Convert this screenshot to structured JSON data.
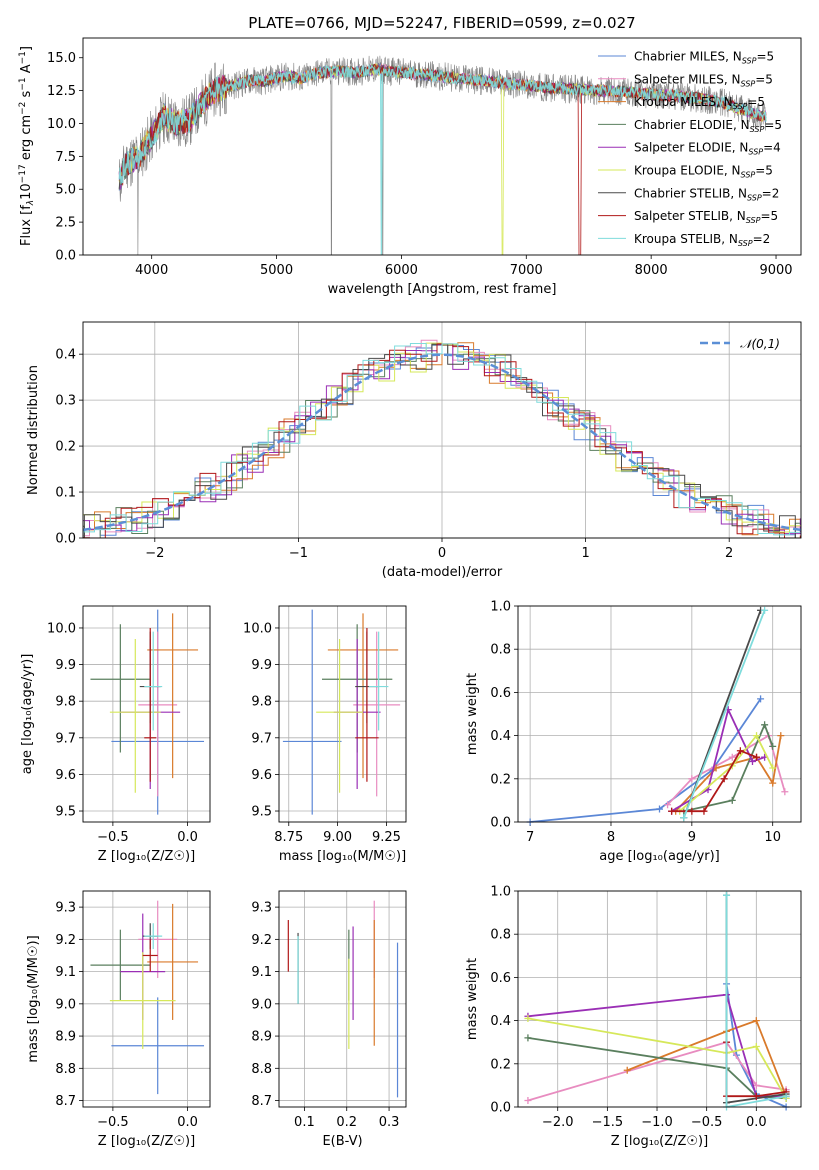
{
  "colors": {
    "Chabrier MILES": "#5b87d6",
    "Salpeter MILES": "#e88cc0",
    "Kroupa MILES": "#d97a2b",
    "Chabrier ELODIE": "#5a7f5e",
    "Salpeter ELODIE": "#9a2fb5",
    "Kroupa ELODIE": "#d6e85a",
    "Chabrier STELIB": "#4a4a4a",
    "Salpeter STELIB": "#b01818",
    "Kroupa STELIB": "#7fdcdc",
    "data": "#808080",
    "normal": "#5b8fd6",
    "grid": "#b0b0b0"
  },
  "chart_data": [
    {
      "id": "spectrum",
      "type": "line",
      "title": "PLATE=0766, MJD=52247, FIBERID=0599, z=0.027",
      "xlabel": "wavelength [Angstrom, rest frame]",
      "ylabel_text": "Flux [f",
      "ylabel_sub": "λ",
      "ylabel_rest": "10",
      "ylabel_sup1": "−17",
      "ylabel_rest2": " erg cm",
      "ylabel_sup2": "−2",
      "ylabel_rest3": " s",
      "ylabel_sup3": "−1",
      "ylabel_rest4": " A",
      "ylabel_sup4": "−1",
      "ylabel_end": "]",
      "xlim": [
        3450,
        9200
      ],
      "ylim": [
        0,
        16.5
      ],
      "xticks": [
        4000,
        5000,
        6000,
        7000,
        8000,
        9000
      ],
      "yticks": [
        "0.0",
        "2.5",
        "5.0",
        "7.5",
        "10.0",
        "12.5",
        "15.0"
      ],
      "continuum": [
        [
          3740,
          5.5
        ],
        [
          3800,
          7.0
        ],
        [
          3900,
          7.5
        ],
        [
          4000,
          9.0
        ],
        [
          4100,
          10.5
        ],
        [
          4200,
          10.0
        ],
        [
          4300,
          10.2
        ],
        [
          4400,
          11.5
        ],
        [
          4500,
          12.5
        ],
        [
          4600,
          12.8
        ],
        [
          4700,
          13.0
        ],
        [
          4800,
          13.3
        ],
        [
          4900,
          13.2
        ],
        [
          5000,
          13.5
        ],
        [
          5100,
          13.6
        ],
        [
          5200,
          13.4
        ],
        [
          5300,
          13.8
        ],
        [
          5400,
          13.9
        ],
        [
          5500,
          14.0
        ],
        [
          5600,
          13.9
        ],
        [
          5800,
          14.1
        ],
        [
          6000,
          13.9
        ],
        [
          6200,
          13.7
        ],
        [
          6400,
          13.5
        ],
        [
          6600,
          13.3
        ],
        [
          6800,
          13.1
        ],
        [
          7000,
          12.9
        ],
        [
          7200,
          12.7
        ],
        [
          7400,
          12.6
        ],
        [
          7600,
          12.5
        ],
        [
          7800,
          12.4
        ],
        [
          8000,
          12.2
        ],
        [
          8200,
          12.1
        ],
        [
          8400,
          11.9
        ],
        [
          8600,
          11.5
        ],
        [
          8800,
          10.8
        ],
        [
          8920,
          10.5
        ]
      ],
      "legend": [
        {
          "label": "Chabrier MILES, N",
          "sub": "SSP",
          "suffix": "=5"
        },
        {
          "label": "Salpeter MILES, N",
          "sub": "SSP",
          "suffix": "=5"
        },
        {
          "label": "Kroupa MILES, N",
          "sub": "SSP",
          "suffix": "=5"
        },
        {
          "label": "Chabrier ELODIE, N",
          "sub": "SSP",
          "suffix": "=5"
        },
        {
          "label": "Salpeter ELODIE, N",
          "sub": "SSP",
          "suffix": "=4"
        },
        {
          "label": "Kroupa ELODIE, N",
          "sub": "SSP",
          "suffix": "=5"
        },
        {
          "label": "Chabrier STELIB, N",
          "sub": "SSP",
          "suffix": "=2"
        },
        {
          "label": "Salpeter STELIB, N",
          "sub": "SSP",
          "suffix": "=5"
        },
        {
          "label": "Kroupa STELIB, N",
          "sub": "SSP",
          "suffix": "=2"
        }
      ]
    },
    {
      "id": "residuals",
      "type": "area",
      "xlabel": "(data-model)/error",
      "ylabel": "Normed distribution",
      "xlim": [
        -2.5,
        2.5
      ],
      "ylim": [
        0,
        0.47
      ],
      "xticks": [
        "−2",
        "−1",
        "0",
        "1",
        "2"
      ],
      "yticks": [
        "0.0",
        "0.1",
        "0.2",
        "0.3",
        "0.4"
      ],
      "legend": "𝒩(0,1)",
      "legend_placement": "top-right",
      "grid": true
    },
    {
      "id": "age_vs_Z",
      "type": "scatter",
      "xlabel": "Z [log₁₀(Z/Z☉)]",
      "ylabel": "age  [log₁₀(age/yr)]",
      "xlim": [
        -0.7,
        0.15
      ],
      "ylim": [
        9.47,
        10.06
      ],
      "xticks": [
        "−0.5",
        "0.0"
      ],
      "yticks": [
        "9.5",
        "9.6",
        "9.7",
        "9.8",
        "9.9",
        "10.0"
      ],
      "points": [
        {
          "model": "Chabrier MILES",
          "x": -0.2,
          "xerr": [
            0.31,
            0.31
          ],
          "y": 9.69,
          "yerr": [
            0.2,
            0.36
          ]
        },
        {
          "model": "Salpeter MILES",
          "x": -0.2,
          "xerr": [
            0.13,
            0.13
          ],
          "y": 9.79,
          "yerr": [
            0.25,
            0.2
          ]
        },
        {
          "model": "Kroupa MILES",
          "x": -0.1,
          "xerr": [
            0.17,
            0.17
          ],
          "y": 9.94,
          "yerr": [
            0.35,
            0.1
          ]
        },
        {
          "model": "Chabrier ELODIE",
          "x": -0.45,
          "xerr": [
            0.2,
            0.2
          ],
          "y": 9.86,
          "yerr": [
            0.2,
            0.15
          ]
        },
        {
          "model": "Salpeter ELODIE",
          "x": -0.25,
          "xerr": [
            0.2,
            0.2
          ],
          "y": 9.77,
          "yerr": [
            0.21,
            0.2
          ]
        },
        {
          "model": "Kroupa ELODIE",
          "x": -0.35,
          "xerr": [
            0.17,
            0.17
          ],
          "y": 9.77,
          "yerr": [
            0.22,
            0.2
          ]
        },
        {
          "model": "Chabrier STELIB",
          "x": -0.25,
          "xerr": [
            0.07,
            0.07
          ],
          "y": 9.84,
          "yerr": [
            0.1,
            0.15
          ]
        },
        {
          "model": "Salpeter STELIB",
          "x": -0.25,
          "xerr": [
            0.04,
            0.04
          ],
          "y": 9.7,
          "yerr": [
            0.12,
            0.3
          ]
        },
        {
          "model": "Kroupa STELIB",
          "x": -0.23,
          "xerr": [
            0.06,
            0.06
          ],
          "y": 9.84,
          "yerr": [
            0.12,
            0.15
          ]
        }
      ]
    },
    {
      "id": "age_vs_mass",
      "type": "scatter",
      "xlabel": "mass [log₁₀(M/M☉)]",
      "xlim": [
        8.7,
        9.35
      ],
      "ylim": [
        9.47,
        10.06
      ],
      "xticks": [
        "8.75",
        "9.00",
        "9.25"
      ],
      "yticks": [
        "9.5",
        "9.6",
        "9.7",
        "9.8",
        "9.9",
        "10.0"
      ],
      "points": [
        {
          "model": "Chabrier MILES",
          "x": 8.87,
          "xerr": [
            0.15,
            0.15
          ],
          "y": 9.69,
          "yerr": [
            0.2,
            0.36
          ]
        },
        {
          "model": "Salpeter MILES",
          "x": 9.2,
          "xerr": [
            0.12,
            0.12
          ],
          "y": 9.79,
          "yerr": [
            0.25,
            0.2
          ]
        },
        {
          "model": "Kroupa MILES",
          "x": 9.13,
          "xerr": [
            0.18,
            0.18
          ],
          "y": 9.94,
          "yerr": [
            0.35,
            0.1
          ]
        },
        {
          "model": "Chabrier ELODIE",
          "x": 9.1,
          "xerr": [
            0.18,
            0.18
          ],
          "y": 9.86,
          "yerr": [
            0.2,
            0.15
          ]
        },
        {
          "model": "Salpeter ELODIE",
          "x": 9.1,
          "xerr": [
            0.12,
            0.12
          ],
          "y": 9.77,
          "yerr": [
            0.21,
            0.2
          ]
        },
        {
          "model": "Kroupa ELODIE",
          "x": 9.01,
          "xerr": [
            0.12,
            0.12
          ],
          "y": 9.77,
          "yerr": [
            0.22,
            0.2
          ]
        },
        {
          "model": "Chabrier STELIB",
          "x": 9.15,
          "xerr": [
            0.06,
            0.06
          ],
          "y": 9.84,
          "yerr": [
            0.1,
            0.15
          ]
        },
        {
          "model": "Salpeter STELIB",
          "x": 9.15,
          "xerr": [
            0.06,
            0.06
          ],
          "y": 9.7,
          "yerr": [
            0.12,
            0.3
          ]
        },
        {
          "model": "Kroupa STELIB",
          "x": 9.21,
          "xerr": [
            0.05,
            0.05
          ],
          "y": 9.84,
          "yerr": [
            0.12,
            0.15
          ]
        }
      ]
    },
    {
      "id": "weight_vs_age",
      "type": "line",
      "xlabel": "age  [log₁₀(age/yr)]",
      "ylabel": "mass weight",
      "xlim": [
        6.85,
        10.35
      ],
      "ylim": [
        0,
        1.0
      ],
      "xticks": [
        "7",
        "8",
        "9",
        "10"
      ],
      "yticks": [
        "0.0",
        "0.2",
        "0.4",
        "0.6",
        "0.8",
        "1.0"
      ],
      "series": [
        {
          "model": "Chabrier MILES",
          "x": [
            7.0,
            8.6,
            9.25,
            9.85
          ],
          "y": [
            0.0,
            0.06,
            0.24,
            0.57
          ]
        },
        {
          "model": "Salpeter MILES",
          "x": [
            8.7,
            9.0,
            9.5,
            9.95,
            10.15
          ],
          "y": [
            0.08,
            0.2,
            0.3,
            0.4,
            0.14
          ]
        },
        {
          "model": "Kroupa MILES",
          "x": [
            8.8,
            9.3,
            9.8,
            10.0,
            10.1
          ],
          "y": [
            0.05,
            0.25,
            0.3,
            0.18,
            0.4
          ]
        },
        {
          "model": "Chabrier ELODIE",
          "x": [
            8.9,
            9.5,
            9.9,
            10.0
          ],
          "y": [
            0.05,
            0.1,
            0.45,
            0.35
          ]
        },
        {
          "model": "Salpeter ELODIE",
          "x": [
            8.75,
            9.2,
            9.45,
            9.75,
            9.9
          ],
          "y": [
            0.05,
            0.15,
            0.52,
            0.28,
            0.3
          ]
        },
        {
          "model": "Kroupa ELODIE",
          "x": [
            8.85,
            9.5,
            9.8,
            10.0
          ],
          "y": [
            0.05,
            0.26,
            0.4,
            0.25
          ]
        },
        {
          "model": "Chabrier STELIB",
          "x": [
            8.9,
            9.85
          ],
          "y": [
            0.02,
            0.98
          ]
        },
        {
          "model": "Salpeter STELIB",
          "x": [
            8.75,
            9.0,
            9.15,
            9.4,
            9.6,
            9.8
          ],
          "y": [
            0.05,
            0.05,
            0.05,
            0.2,
            0.33,
            0.3
          ]
        },
        {
          "model": "Kroupa STELIB",
          "x": [
            8.9,
            9.9
          ],
          "y": [
            0.02,
            0.98
          ]
        }
      ]
    },
    {
      "id": "mass_vs_Z",
      "type": "scatter",
      "xlabel": "Z [log₁₀(Z/Z☉)]",
      "ylabel": "mass [log₁₀(M/M☉)]",
      "xlim": [
        -0.7,
        0.15
      ],
      "ylim": [
        8.68,
        9.35
      ],
      "xticks": [
        "−0.5",
        "0.0"
      ],
      "yticks": [
        "8.7",
        "8.8",
        "8.9",
        "9.0",
        "9.1",
        "9.2",
        "9.3"
      ],
      "points": [
        {
          "model": "Chabrier MILES",
          "x": -0.2,
          "xerr": [
            0.31,
            0.31
          ],
          "y": 8.87,
          "yerr": [
            0.15,
            0.15
          ]
        },
        {
          "model": "Salpeter MILES",
          "x": -0.2,
          "xerr": [
            0.13,
            0.13
          ],
          "y": 9.2,
          "yerr": [
            0.12,
            0.12
          ]
        },
        {
          "model": "Kroupa MILES",
          "x": -0.1,
          "xerr": [
            0.17,
            0.17
          ],
          "y": 9.13,
          "yerr": [
            0.18,
            0.18
          ]
        },
        {
          "model": "Chabrier ELODIE",
          "x": -0.45,
          "xerr": [
            0.2,
            0.2
          ],
          "y": 9.12,
          "yerr": [
            0.11,
            0.11
          ]
        },
        {
          "model": "Salpeter ELODIE",
          "x": -0.3,
          "xerr": [
            0.15,
            0.15
          ],
          "y": 9.1,
          "yerr": [
            0.15,
            0.18
          ]
        },
        {
          "model": "Kroupa ELODIE",
          "x": -0.3,
          "xerr": [
            0.22,
            0.22
          ],
          "y": 9.01,
          "yerr": [
            0.15,
            0.15
          ]
        },
        {
          "model": "Chabrier STELIB",
          "x": -0.25,
          "xerr": [
            0.05,
            0.05
          ],
          "y": 9.21,
          "yerr": [
            0.04,
            0.04
          ]
        },
        {
          "model": "Salpeter STELIB",
          "x": -0.25,
          "xerr": [
            0.05,
            0.05
          ],
          "y": 9.15,
          "yerr": [
            0.05,
            0.05
          ]
        },
        {
          "model": "Kroupa STELIB",
          "x": -0.23,
          "xerr": [
            0.06,
            0.06
          ],
          "y": 9.21,
          "yerr": [
            0.04,
            0.04
          ]
        }
      ]
    },
    {
      "id": "mass_vs_EBV",
      "type": "scatter",
      "xlabel": "E(B-V)",
      "xlim": [
        0.04,
        0.34
      ],
      "ylim": [
        8.68,
        9.35
      ],
      "xticks": [
        "0.1",
        "0.2",
        "0.3"
      ],
      "yticks": [
        "8.7",
        "8.8",
        "8.9",
        "9.0",
        "9.1",
        "9.2",
        "9.3"
      ],
      "points": [
        {
          "model": "Chabrier MILES",
          "x": 0.32,
          "y": 8.95,
          "yerr": [
            0.24,
            0.24
          ]
        },
        {
          "model": "Salpeter MILES",
          "x": 0.265,
          "y": 9.2,
          "yerr": [
            0.12,
            0.12
          ]
        },
        {
          "model": "Kroupa MILES",
          "x": 0.265,
          "y": 9.08,
          "yerr": [
            0.21,
            0.18
          ]
        },
        {
          "model": "Chabrier ELODIE",
          "x": 0.205,
          "y": 9.12,
          "yerr": [
            0.11,
            0.11
          ]
        },
        {
          "model": "Salpeter ELODIE",
          "x": 0.215,
          "y": 9.1,
          "yerr": [
            0.15,
            0.14
          ]
        },
        {
          "model": "Kroupa ELODIE",
          "x": 0.205,
          "y": 9.0,
          "yerr": [
            0.14,
            0.14
          ]
        },
        {
          "model": "Chabrier STELIB",
          "x": 0.085,
          "y": 9.11,
          "yerr": [
            0.11,
            0.11
          ]
        },
        {
          "model": "Salpeter STELIB",
          "x": 0.062,
          "y": 9.18,
          "yerr": [
            0.08,
            0.08
          ]
        },
        {
          "model": "Kroupa STELIB",
          "x": 0.085,
          "y": 9.11,
          "yerr": [
            0.11,
            0.1
          ]
        }
      ]
    },
    {
      "id": "weight_vs_Z",
      "type": "line",
      "xlabel": "Z [log₁₀(Z/Z☉)]",
      "ylabel": "mass weight",
      "xlim": [
        -2.4,
        0.45
      ],
      "ylim": [
        0,
        1.0
      ],
      "xticks": [
        "−2.0",
        "−1.5",
        "−1.0",
        "−0.5",
        "0.0"
      ],
      "yticks": [
        "0.0",
        "0.2",
        "0.4",
        "0.6",
        "0.8",
        "1.0"
      ],
      "series": [
        {
          "model": "Chabrier MILES",
          "x": [
            -0.3,
            -0.2,
            0.0,
            0.3
          ],
          "y": [
            0.57,
            0.24,
            0.06,
            0.0
          ]
        },
        {
          "model": "Salpeter MILES",
          "x": [
            -2.3,
            -0.3,
            0.0,
            0.3
          ],
          "y": [
            0.03,
            0.3,
            0.1,
            0.08
          ]
        },
        {
          "model": "Kroupa MILES",
          "x": [
            -1.3,
            -0.3,
            0.0,
            0.3
          ],
          "y": [
            0.17,
            0.35,
            0.4,
            0.05
          ]
        },
        {
          "model": "Chabrier ELODIE",
          "x": [
            -2.3,
            -0.3,
            0.0,
            0.3
          ],
          "y": [
            0.32,
            0.18,
            0.05,
            0.04
          ]
        },
        {
          "model": "Salpeter ELODIE",
          "x": [
            -2.3,
            -0.3,
            0.0,
            0.3
          ],
          "y": [
            0.42,
            0.52,
            0.05,
            0.05
          ]
        },
        {
          "model": "Kroupa ELODIE",
          "x": [
            -2.3,
            -0.3,
            0.0,
            0.3
          ],
          "y": [
            0.41,
            0.25,
            0.28,
            0.04
          ]
        },
        {
          "model": "Chabrier STELIB",
          "x": [
            -0.3,
            -0.3,
            0.3
          ],
          "y": [
            0.98,
            0.02,
            0.06
          ]
        },
        {
          "model": "Salpeter STELIB",
          "x": [
            -0.3,
            -0.3,
            0.0,
            0.3
          ],
          "y": [
            0.3,
            0.05,
            0.05,
            0.07
          ]
        },
        {
          "model": "Kroupa STELIB",
          "x": [
            -0.3,
            -0.3,
            0.3
          ],
          "y": [
            0.98,
            0.0,
            0.05
          ]
        }
      ]
    }
  ]
}
